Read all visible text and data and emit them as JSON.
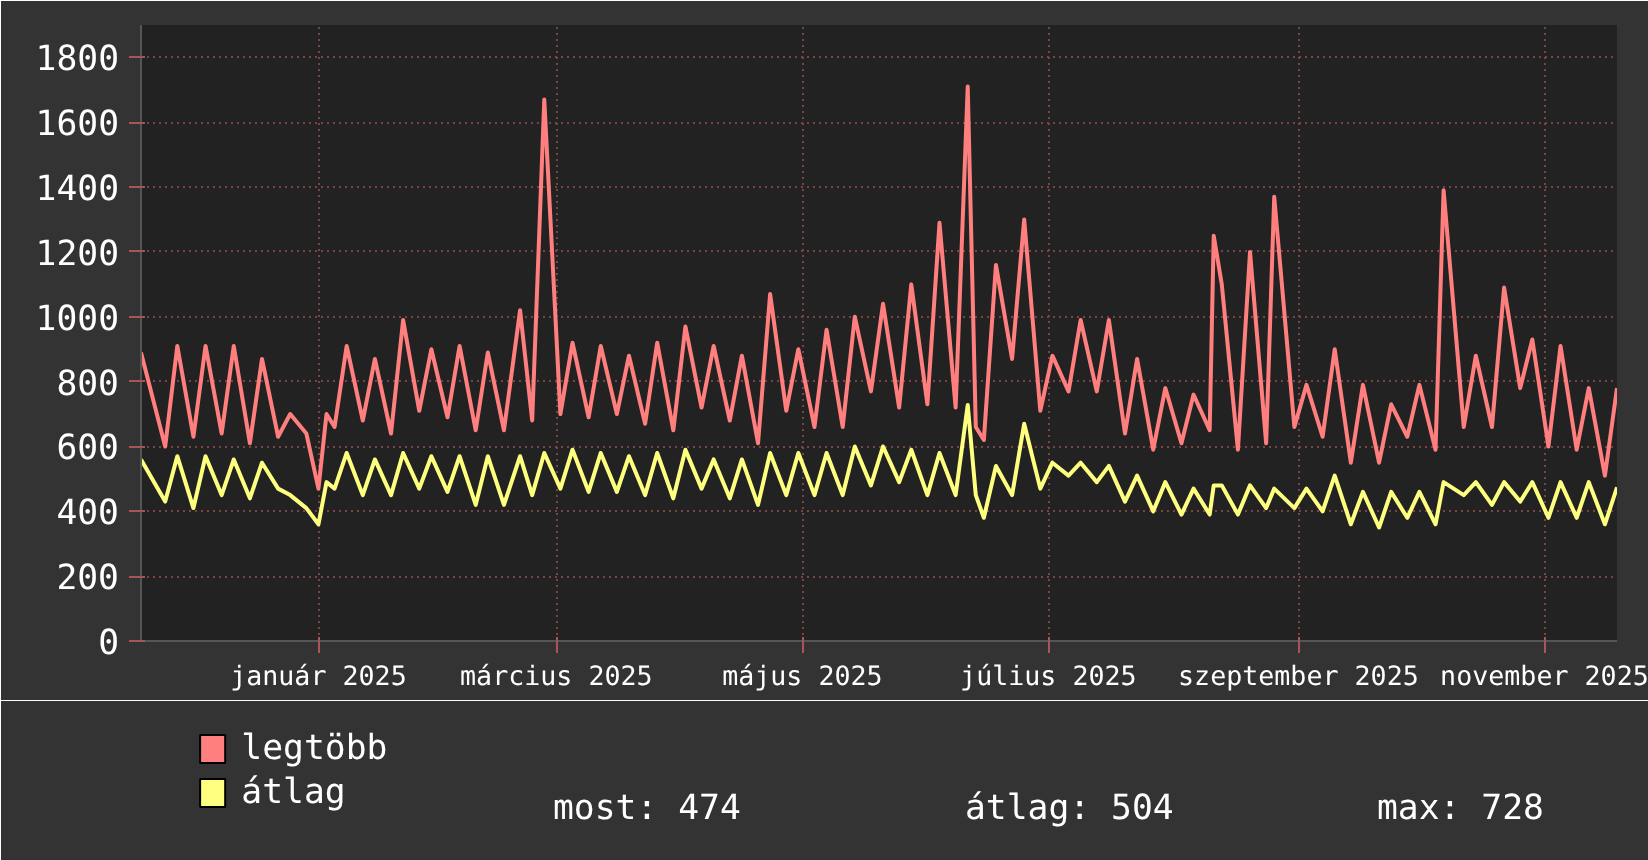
{
  "chart_data": {
    "type": "line",
    "x": [
      "2024-11-18",
      "2024-11-24",
      "2024-11-27",
      "2024-12-01",
      "2024-12-04",
      "2024-12-08",
      "2024-12-11",
      "2024-12-15",
      "2024-12-18",
      "2024-12-22",
      "2024-12-25",
      "2024-12-29",
      "2025-01-01",
      "2025-01-03",
      "2025-01-05",
      "2025-01-08",
      "2025-01-12",
      "2025-01-15",
      "2025-01-19",
      "2025-01-22",
      "2025-01-26",
      "2025-01-29",
      "2025-02-02",
      "2025-02-05",
      "2025-02-09",
      "2025-02-12",
      "2025-02-16",
      "2025-02-20",
      "2025-02-23",
      "2025-02-26",
      "2025-03-02",
      "2025-03-05",
      "2025-03-09",
      "2025-03-12",
      "2025-03-16",
      "2025-03-19",
      "2025-03-23",
      "2025-03-26",
      "2025-03-30",
      "2025-04-02",
      "2025-04-06",
      "2025-04-09",
      "2025-04-13",
      "2025-04-16",
      "2025-04-20",
      "2025-04-23",
      "2025-04-27",
      "2025-04-30",
      "2025-05-04",
      "2025-05-07",
      "2025-05-11",
      "2025-05-14",
      "2025-05-18",
      "2025-05-21",
      "2025-05-25",
      "2025-05-28",
      "2025-06-01",
      "2025-06-04",
      "2025-06-08",
      "2025-06-11",
      "2025-06-13",
      "2025-06-15",
      "2025-06-18",
      "2025-06-22",
      "2025-06-25",
      "2025-06-29",
      "2025-07-02",
      "2025-07-06",
      "2025-07-09",
      "2025-07-13",
      "2025-07-16",
      "2025-07-20",
      "2025-07-23",
      "2025-07-27",
      "2025-07-30",
      "2025-08-03",
      "2025-08-06",
      "2025-08-10",
      "2025-08-11",
      "2025-08-13",
      "2025-08-17",
      "2025-08-20",
      "2025-08-24",
      "2025-08-26",
      "2025-08-31",
      "2025-09-03",
      "2025-09-07",
      "2025-09-10",
      "2025-09-14",
      "2025-09-17",
      "2025-09-21",
      "2025-09-24",
      "2025-09-28",
      "2025-10-01",
      "2025-10-05",
      "2025-10-07",
      "2025-10-12",
      "2025-10-15",
      "2025-10-19",
      "2025-10-22",
      "2025-10-26",
      "2025-10-29",
      "2025-11-02",
      "2025-11-05",
      "2025-11-09",
      "2025-11-12",
      "2025-11-16",
      "2025-11-19"
    ],
    "series": [
      {
        "name": "legtöbb",
        "color": "#ff7f7f",
        "values": [
          890,
          600,
          910,
          630,
          910,
          640,
          910,
          610,
          870,
          630,
          700,
          640,
          470,
          700,
          660,
          910,
          680,
          870,
          640,
          990,
          710,
          900,
          690,
          910,
          650,
          890,
          650,
          1020,
          680,
          1670,
          700,
          920,
          690,
          910,
          700,
          880,
          670,
          920,
          650,
          970,
          720,
          910,
          680,
          880,
          610,
          1070,
          710,
          900,
          660,
          960,
          660,
          1000,
          770,
          1040,
          720,
          1100,
          730,
          1290,
          720,
          1710,
          660,
          620,
          1160,
          870,
          1300,
          710,
          880,
          770,
          990,
          770,
          990,
          640,
          870,
          590,
          780,
          610,
          760,
          650,
          1250,
          1100,
          590,
          1200,
          610,
          1370,
          660,
          790,
          630,
          900,
          550,
          790,
          550,
          730,
          630,
          790,
          590,
          1390,
          660,
          880,
          660,
          1090,
          780,
          930,
          600,
          910,
          590,
          780,
          510,
          780
        ]
      },
      {
        "name": "átlag",
        "color": "#ffff7f",
        "values": [
          560,
          430,
          570,
          410,
          570,
          450,
          560,
          440,
          550,
          470,
          450,
          410,
          360,
          490,
          470,
          580,
          450,
          560,
          450,
          580,
          470,
          570,
          460,
          570,
          420,
          570,
          420,
          570,
          450,
          580,
          470,
          590,
          460,
          580,
          460,
          570,
          450,
          580,
          440,
          590,
          470,
          560,
          440,
          560,
          420,
          580,
          450,
          580,
          450,
          580,
          450,
          600,
          480,
          600,
          490,
          590,
          450,
          580,
          450,
          728,
          450,
          380,
          540,
          450,
          670,
          470,
          550,
          510,
          550,
          490,
          540,
          430,
          510,
          400,
          490,
          390,
          470,
          390,
          480,
          480,
          390,
          480,
          410,
          470,
          410,
          470,
          400,
          510,
          360,
          460,
          350,
          460,
          380,
          460,
          360,
          490,
          450,
          490,
          420,
          490,
          430,
          490,
          380,
          490,
          380,
          490,
          360,
          474
        ]
      }
    ],
    "xlim": [
      "2024-11-18",
      "2025-11-19"
    ],
    "xticks": [
      {
        "value": "2025-01-01",
        "label": "január 2025"
      },
      {
        "value": "2025-03-01",
        "label": "március 2025"
      },
      {
        "value": "2025-05-01",
        "label": "május 2025"
      },
      {
        "value": "2025-07-01",
        "label": "július 2025"
      },
      {
        "value": "2025-09-01",
        "label": "szeptember 2025"
      },
      {
        "value": "2025-11-01",
        "label": "november 2025"
      }
    ],
    "ylim": [
      0,
      1900
    ],
    "yticks": [
      0,
      200,
      400,
      600,
      800,
      1000,
      1200,
      1400,
      1600,
      1800
    ],
    "grid": true,
    "legend": "bottom",
    "annotations": [
      "most: 474",
      "átlag: 504",
      "max: 728"
    ]
  }
}
